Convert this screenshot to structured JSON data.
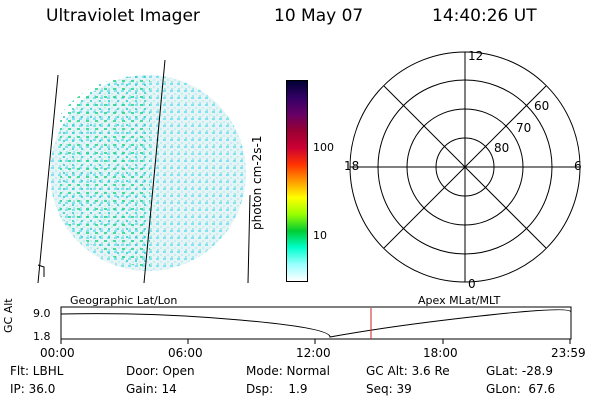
{
  "header": {
    "title": "Ultraviolet Imager",
    "date": "10 May 07",
    "time": "14:40:26 UT"
  },
  "colorbar": {
    "label": "photon cm-2s-1",
    "ticks": [
      "100",
      "10"
    ],
    "colors": [
      "#000033",
      "#330066",
      "#660066",
      "#990033",
      "#cc0033",
      "#ff3300",
      "#ff9900",
      "#ffff00",
      "#99ff00",
      "#00cc33",
      "#00ffcc",
      "#99ffff",
      "#ffffff"
    ]
  },
  "polar": {
    "mlt_labels": {
      "top": "12",
      "left": "18",
      "right": "6",
      "bottom": "0"
    },
    "lat_labels": [
      "60",
      "70",
      "80"
    ]
  },
  "timeline": {
    "ylabel": "GC Alt",
    "ticks_y": [
      "9.0",
      "1.8"
    ],
    "left_title": "Geographic Lat/Lon",
    "right_title": "Apex MLat/MLT",
    "x_ticks": [
      "00:00",
      "06:00",
      "12:00",
      "18:00",
      "23:59"
    ],
    "marker_time": "14:40"
  },
  "info": {
    "flt": "Flt: LBHL",
    "door": "Door: Open",
    "mode": "Mode: Normal",
    "gc_alt": "GC Alt: 3.6 Re",
    "glat": "GLat: -28.9",
    "ip": "IP: 36.0",
    "gain": "Gain: 14",
    "dsp": "Dsp:    1.9",
    "seq": "Seq: 39",
    "glon": "GLon:  67.6"
  }
}
